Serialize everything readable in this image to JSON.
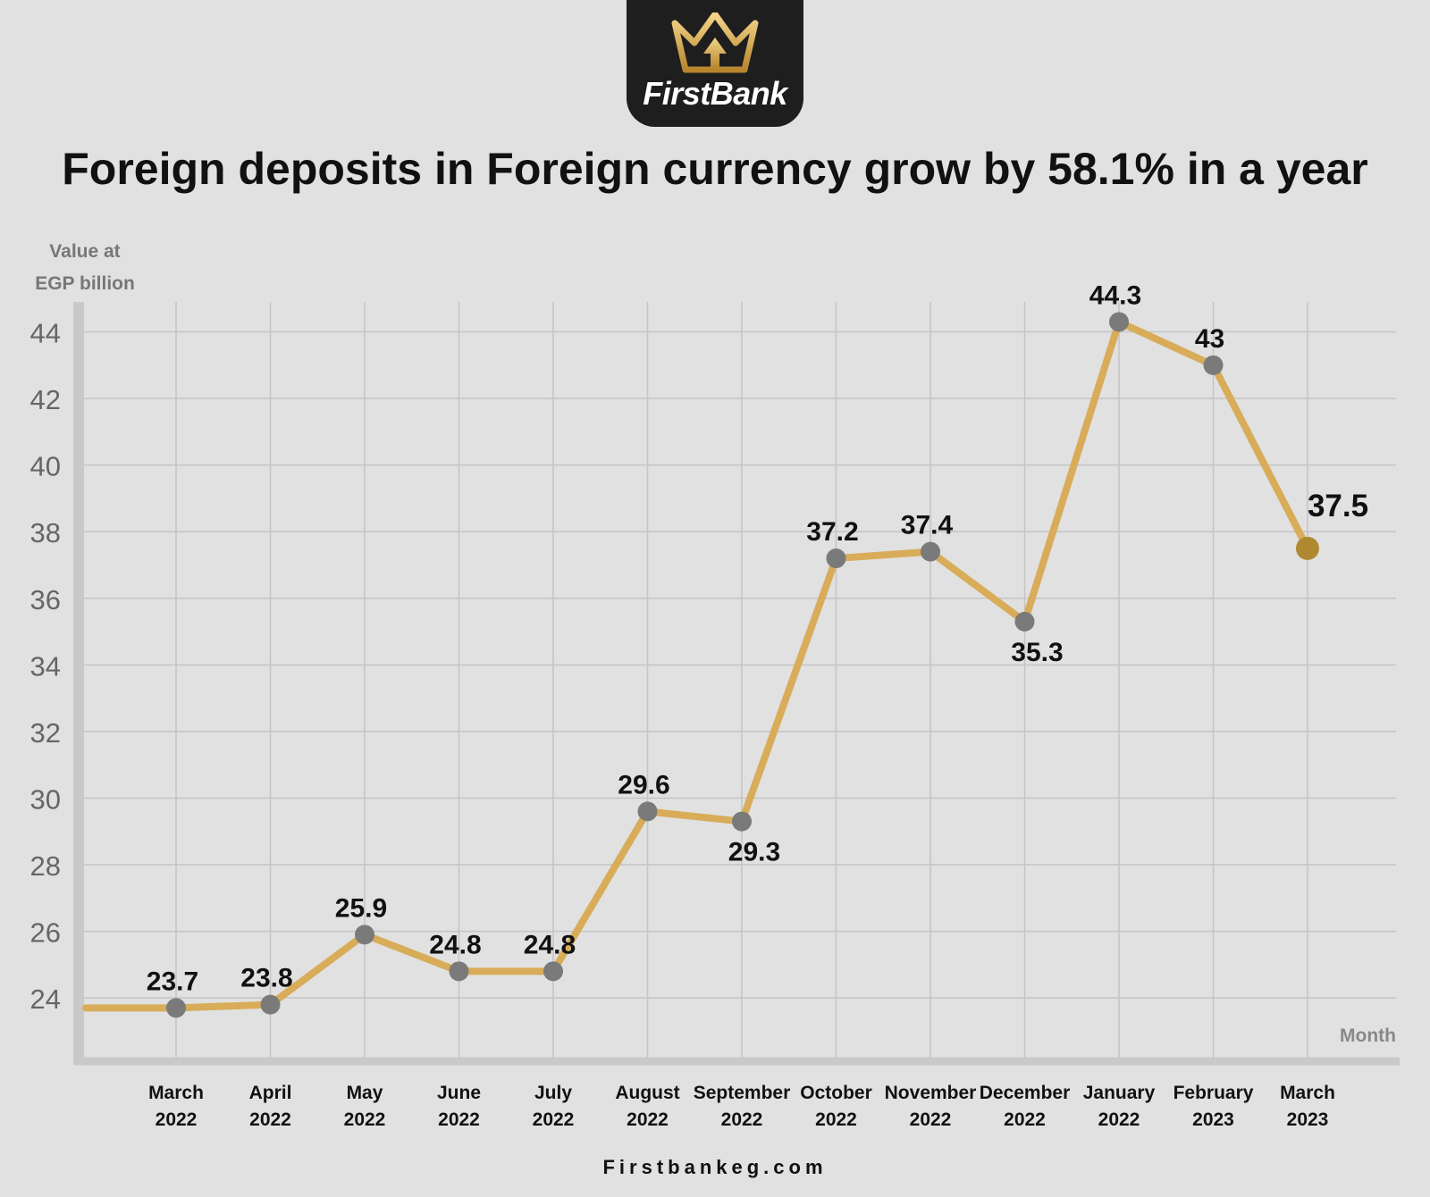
{
  "brand": {
    "name": "FirstBank",
    "accent": "#d8ac58",
    "logo_bg": "#1e1e1e"
  },
  "title": "Foreign deposits in Foreign currency grow by 58.1% in a year",
  "footer": "Firstbankeg.com",
  "chart_data": {
    "type": "line",
    "ylabel": [
      "Value at",
      "EGP billion"
    ],
    "xlabel": "Month",
    "categories": [
      [
        "March",
        "2022"
      ],
      [
        "April",
        "2022"
      ],
      [
        "May",
        "2022"
      ],
      [
        "June",
        "2022"
      ],
      [
        "July",
        "2022"
      ],
      [
        "August",
        "2022"
      ],
      [
        "September",
        "2022"
      ],
      [
        "October",
        "2022"
      ],
      [
        "November",
        "2022"
      ],
      [
        "December",
        "2022"
      ],
      [
        "January",
        "2022"
      ],
      [
        "February",
        "2023"
      ],
      [
        "March",
        "2023"
      ]
    ],
    "values": [
      23.7,
      23.8,
      25.9,
      24.8,
      24.8,
      29.6,
      29.3,
      37.2,
      37.4,
      35.3,
      44.3,
      43,
      37.5
    ],
    "labels": [
      "23.7",
      "23.8",
      "25.9",
      "24.8",
      "24.8",
      "29.6",
      "29.3",
      "37.2",
      "37.4",
      "35.3",
      "44.3",
      "43",
      "37.5"
    ],
    "label_position": [
      "above",
      "above",
      "above",
      "above",
      "above",
      "above",
      "below",
      "above",
      "above",
      "below",
      "above",
      "above",
      "above"
    ],
    "yticks": [
      24,
      26,
      28,
      30,
      32,
      34,
      36,
      38,
      40,
      42,
      44
    ],
    "ylim": [
      22.1,
      44.9
    ],
    "grid": true,
    "line_color": "#d8ac58",
    "marker_color": "#7a7a7a",
    "last_marker_color": "#b08830"
  }
}
